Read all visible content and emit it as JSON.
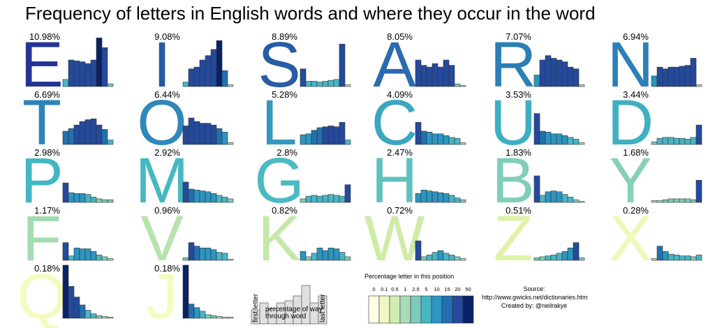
{
  "chart_data": {
    "type": "bar",
    "title": "Frequency of letters in English words and where they occur in the word",
    "x_categories_note": "",
    "panels": [
      {
        "letter": "E",
        "pct_label": "10.98%",
        "frequency": 10.98,
        "values": [
          8,
          30,
          29,
          28,
          26,
          30,
          55,
          44,
          3
        ]
      },
      {
        "letter": "I",
        "pct_label": "9.08%",
        "frequency": 9.08,
        "values": [
          5,
          20,
          22,
          30,
          35,
          42,
          52,
          18,
          2
        ]
      },
      {
        "letter": "S",
        "pct_label": "8.89%",
        "frequency": 8.89,
        "values": [
          20,
          6,
          6,
          5,
          6,
          7,
          8,
          48,
          2
        ]
      },
      {
        "letter": "A",
        "pct_label": "8.05%",
        "frequency": 8.05,
        "values": [
          30,
          24,
          22,
          26,
          22,
          30,
          24,
          3,
          1
        ]
      },
      {
        "letter": "R",
        "pct_label": "7.07%",
        "frequency": 7.07,
        "values": [
          13,
          30,
          35,
          32,
          30,
          28,
          22,
          20,
          2
        ]
      },
      {
        "letter": "N",
        "pct_label": "6.94%",
        "frequency": 6.94,
        "values": [
          12,
          22,
          20,
          22,
          22,
          23,
          24,
          32,
          2
        ]
      },
      {
        "letter": "T",
        "pct_label": "6.69%",
        "frequency": 6.69,
        "values": [
          15,
          18,
          22,
          26,
          28,
          29,
          22,
          17,
          5
        ]
      },
      {
        "letter": "O",
        "pct_label": "6.44%",
        "frequency": 6.44,
        "values": [
          21,
          30,
          26,
          24,
          24,
          22,
          18,
          14,
          2
        ]
      },
      {
        "letter": "L",
        "pct_label": "5.28%",
        "frequency": 5.28,
        "values": [
          11,
          12,
          16,
          19,
          20,
          21,
          20,
          25,
          5
        ]
      },
      {
        "letter": "C",
        "pct_label": "4.09%",
        "frequency": 4.09,
        "values": [
          25,
          15,
          14,
          12,
          12,
          10,
          8,
          7,
          2
        ]
      },
      {
        "letter": "U",
        "pct_label": "3.53%",
        "frequency": 3.53,
        "values": [
          35,
          15,
          14,
          12,
          12,
          10,
          8,
          6,
          2
        ]
      },
      {
        "letter": "D",
        "pct_label": "3.44%",
        "frequency": 3.44,
        "values": [
          3,
          7,
          8,
          8,
          7,
          7,
          6,
          8,
          22
        ]
      },
      {
        "letter": "P",
        "pct_label": "2.98%",
        "frequency": 2.98,
        "values": [
          22,
          11,
          10,
          10,
          9,
          6,
          4,
          3,
          3
        ]
      },
      {
        "letter": "M",
        "pct_label": "2.92%",
        "frequency": 2.92,
        "values": [
          23,
          15,
          14,
          13,
          12,
          10,
          8,
          6,
          4
        ]
      },
      {
        "letter": "G",
        "pct_label": "2.8%",
        "frequency": 2.8,
        "values": [
          4,
          7,
          8,
          7,
          8,
          9,
          8,
          7,
          20
        ]
      },
      {
        "letter": "H",
        "pct_label": "2.47%",
        "frequency": 2.47,
        "values": [
          10,
          14,
          13,
          12,
          11,
          10,
          8,
          5,
          3
        ]
      },
      {
        "letter": "B",
        "pct_label": "1.83%",
        "frequency": 1.83,
        "values": [
          30,
          8,
          12,
          13,
          12,
          9,
          6,
          3,
          1
        ]
      },
      {
        "letter": "Y",
        "pct_label": "1.68%",
        "frequency": 1.68,
        "values": [
          2,
          2,
          3,
          4,
          4,
          4,
          4,
          3,
          25
        ]
      },
      {
        "letter": "F",
        "pct_label": "1.17%",
        "frequency": 1.17,
        "values": [
          20,
          5,
          14,
          13,
          13,
          10,
          6,
          4,
          2
        ]
      },
      {
        "letter": "V",
        "pct_label": "0.96%",
        "frequency": 0.96,
        "values": [
          3,
          20,
          16,
          14,
          14,
          12,
          9,
          8,
          1
        ]
      },
      {
        "letter": "K",
        "pct_label": "0.82%",
        "frequency": 0.82,
        "values": [
          10,
          4,
          8,
          14,
          11,
          14,
          13,
          9,
          4
        ]
      },
      {
        "letter": "W",
        "pct_label": "0.72%",
        "frequency": 0.72,
        "values": [
          22,
          4,
          6,
          9,
          11,
          8,
          6,
          4,
          2
        ]
      },
      {
        "letter": "Z",
        "pct_label": "0.51%",
        "frequency": 0.51,
        "values": [
          3,
          4,
          5,
          6,
          8,
          10,
          14,
          20,
          3
        ]
      },
      {
        "letter": "X",
        "pct_label": "0.28%",
        "frequency": 0.28,
        "values": [
          2,
          16,
          10,
          7,
          6,
          5,
          5,
          4,
          6
        ]
      },
      {
        "letter": "Q",
        "pct_label": "0.18%",
        "frequency": 0.18,
        "values": [
          62,
          36,
          24,
          15,
          9,
          5,
          3,
          2,
          1
        ]
      },
      {
        "letter": "J",
        "pct_label": "0.18%",
        "frequency": 0.18,
        "values": [
          62,
          16,
          12,
          8,
          4,
          3,
          2,
          1,
          1
        ]
      }
    ],
    "key": {
      "values": [
        20,
        30,
        22,
        30,
        33,
        40,
        55,
        30,
        40
      ],
      "first_label": "first letter",
      "middle_label_line1": "percentage of way",
      "middle_label_line2": "through word",
      "last_label": "last letter"
    },
    "legend": {
      "title": "Percentage letter in this position",
      "ticks": [
        "0",
        "0.1",
        "0.5",
        "1",
        "2.5",
        "5",
        "10",
        "15",
        "20",
        "50"
      ],
      "thresholds": [
        0,
        0.1,
        0.5,
        1,
        2.5,
        5,
        10,
        15,
        20,
        50
      ],
      "colors": [
        "#ffffe5",
        "#edf8c6",
        "#d2edb3",
        "#a9dcb6",
        "#7ccbbb",
        "#48b5c4",
        "#2c95c0",
        "#2170b1",
        "#244a9d",
        "#0a2166"
      ]
    },
    "source": {
      "line1": "Source:",
      "line2": "http://www.gwicks.net/dictionaries.htm",
      "line3": "Created by: @neilrakye"
    }
  }
}
